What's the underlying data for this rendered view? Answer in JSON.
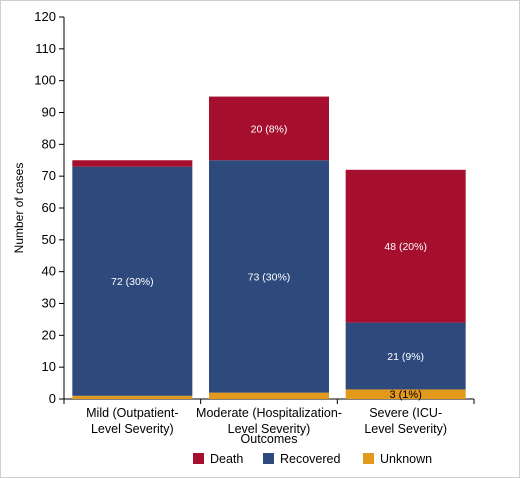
{
  "chart_data": {
    "type": "bar",
    "stacked": true,
    "categories": [
      [
        "Mild (Outpatient-",
        "Level Severity)"
      ],
      [
        "Moderate (Hospitalization-",
        "Level Severity)"
      ],
      [
        "Severe (ICU-",
        "Level Severity)"
      ]
    ],
    "series": [
      {
        "name": "Unknown",
        "color": "#e39a1c",
        "values": [
          1,
          2,
          3
        ],
        "labels": [
          "",
          "",
          "3 (1%)"
        ]
      },
      {
        "name": "Recovered",
        "color": "#2e4a7d",
        "values": [
          72,
          73,
          21
        ],
        "labels": [
          "72 (30%)",
          "73 (30%)",
          "21 (9%)"
        ]
      },
      {
        "name": "Death",
        "color": "#a50f2d",
        "values": [
          2,
          20,
          48
        ],
        "labels": [
          "",
          "20 (8%)",
          "48 (20%)"
        ]
      }
    ],
    "legend_order": [
      "Death",
      "Recovered",
      "Unknown"
    ],
    "legend_position": "bottom",
    "xlabel": "Outcomes",
    "ylabel": "Number of cases",
    "ylim": [
      0,
      120
    ],
    "yticks": [
      0,
      10,
      20,
      30,
      40,
      50,
      60,
      70,
      80,
      90,
      100,
      110,
      120
    ],
    "grid": false
  }
}
